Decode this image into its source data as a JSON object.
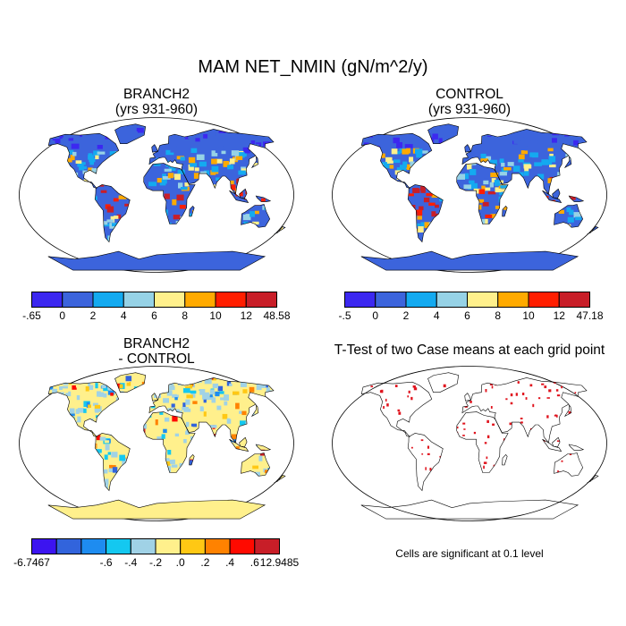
{
  "figure": {
    "title": "MAM NET_NMIN (gN/m^2/y)",
    "note": "Cells are significant at 0.1 level"
  },
  "colors": {
    "ocean": "#ffffff",
    "outline": "#000000",
    "significant": "#e0141e"
  },
  "chart_data": [
    {
      "type": "heatmap",
      "panel": "top-left",
      "title": "BRANCH2",
      "subtitle": "(yrs 931-960)",
      "colorbar": {
        "labels": [
          "-.65",
          "0",
          "2",
          "4",
          "6",
          "8",
          "10",
          "12",
          "48.58"
        ],
        "colors": [
          "#3c28f0",
          "#3c64dc",
          "#14aaf0",
          "#96d2e6",
          "#fff08c",
          "#ffaa00",
          "#ff1e00",
          "#c81e28"
        ],
        "range": [
          -0.65,
          48.58
        ]
      }
    },
    {
      "type": "heatmap",
      "panel": "top-right",
      "title": "CONTROL",
      "subtitle": "(yrs 931-960)",
      "colorbar": {
        "labels": [
          "-.5",
          "0",
          "2",
          "4",
          "6",
          "8",
          "10",
          "12",
          "47.18"
        ],
        "colors": [
          "#3c28f0",
          "#3c64dc",
          "#14aaf0",
          "#96d2e6",
          "#fff08c",
          "#ffaa00",
          "#ff1e00",
          "#c81e28"
        ],
        "range": [
          -0.5,
          47.18
        ]
      }
    },
    {
      "type": "heatmap",
      "panel": "bottom-left",
      "title": "BRANCH2",
      "subtitle": "- CONTROL",
      "colorbar": {
        "labels": [
          "-6.7467",
          "-.6",
          "-.4",
          "-.2",
          ".0",
          ".2",
          ".4",
          ".6",
          "12.9485"
        ],
        "colors": [
          "#3c14f0",
          "#3264dc",
          "#1e8cf0",
          "#14c8f0",
          "#a0d2e6",
          "#fff08c",
          "#ffc814",
          "#ff8200",
          "#ff0a00",
          "#c81e28"
        ],
        "range": [
          -6.7467,
          12.9485
        ]
      }
    },
    {
      "type": "heatmap",
      "panel": "bottom-right",
      "title": "T-Test of two Case means at each grid point",
      "subtitle": ""
    }
  ]
}
